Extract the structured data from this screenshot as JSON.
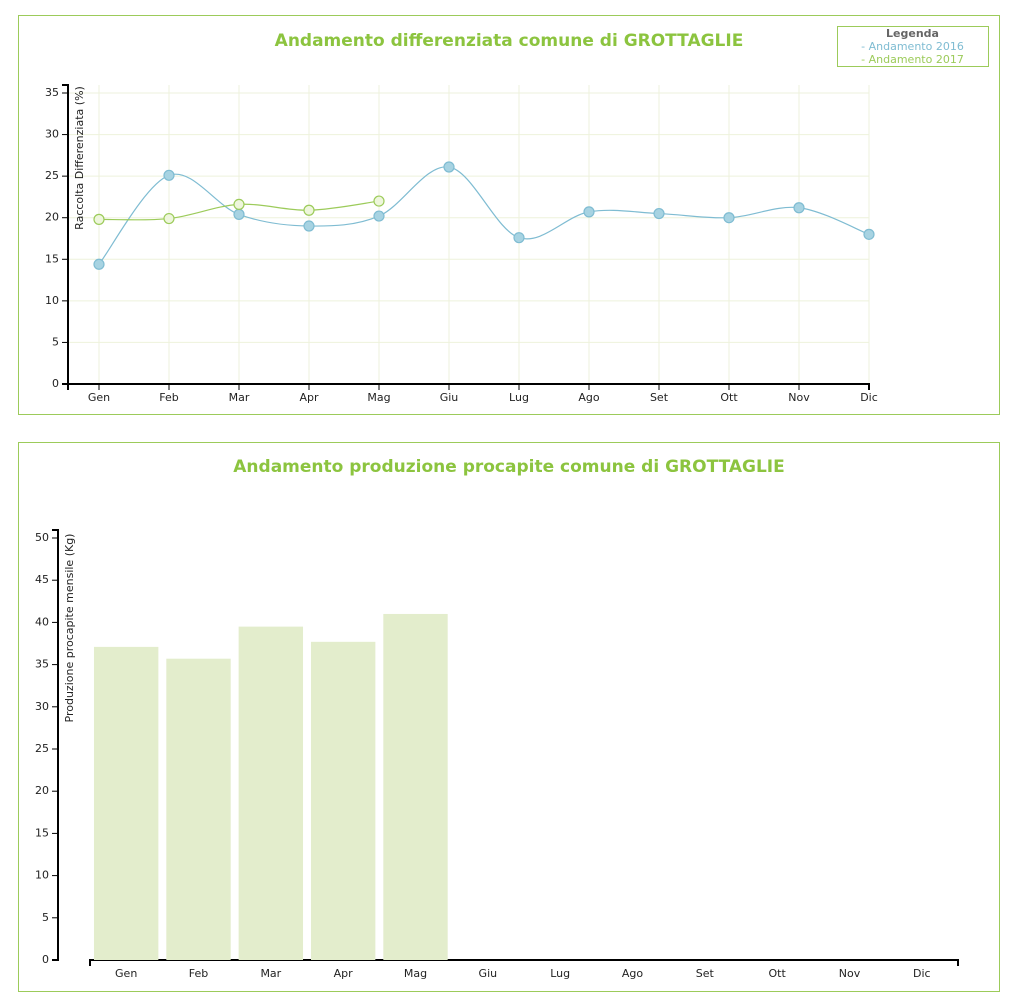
{
  "chart_data": [
    {
      "type": "line",
      "title": "Andamento differenziata comune di GROTTAGLIE",
      "y_label": "Raccolta Differenziata (%)",
      "legend_title": "Legenda",
      "legend": "top-right",
      "grid": true,
      "categories": [
        "Gen",
        "Feb",
        "Mar",
        "Apr",
        "Mag",
        "Giu",
        "Lug",
        "Ago",
        "Set",
        "Ott",
        "Nov",
        "Dic"
      ],
      "series": [
        {
          "name": "- Andamento 2016",
          "color": "#7fbcd2",
          "values": [
            14.4,
            25.1,
            20.4,
            19.0,
            20.2,
            26.1,
            17.6,
            20.7,
            20.5,
            20.0,
            21.2,
            18.0
          ]
        },
        {
          "name": "- Andamento 2017",
          "color": "#9ccb5a",
          "values": [
            19.8,
            19.9,
            21.6,
            20.9,
            22.0,
            null,
            null,
            null,
            null,
            null,
            null,
            null
          ]
        }
      ],
      "ylim": [
        0,
        35
      ],
      "yticks": [
        0,
        5,
        10,
        15,
        20,
        25,
        30,
        35
      ]
    },
    {
      "type": "bar",
      "title": "Andamento produzione procapite comune di GROTTAGLIE",
      "y_label": "Produzione procapite mensile (Kg)",
      "grid": false,
      "categories": [
        "Gen",
        "Feb",
        "Mar",
        "Apr",
        "Mag",
        "Giu",
        "Lug",
        "Ago",
        "Set",
        "Ott",
        "Nov",
        "Dic"
      ],
      "values": [
        37.1,
        35.7,
        39.5,
        37.7,
        41.0,
        null,
        null,
        null,
        null,
        null,
        null,
        null
      ],
      "color": "#e3edcc",
      "ylim": [
        0,
        50
      ],
      "yticks": [
        0,
        5,
        10,
        15,
        20,
        25,
        30,
        35,
        40,
        45,
        50
      ]
    }
  ]
}
